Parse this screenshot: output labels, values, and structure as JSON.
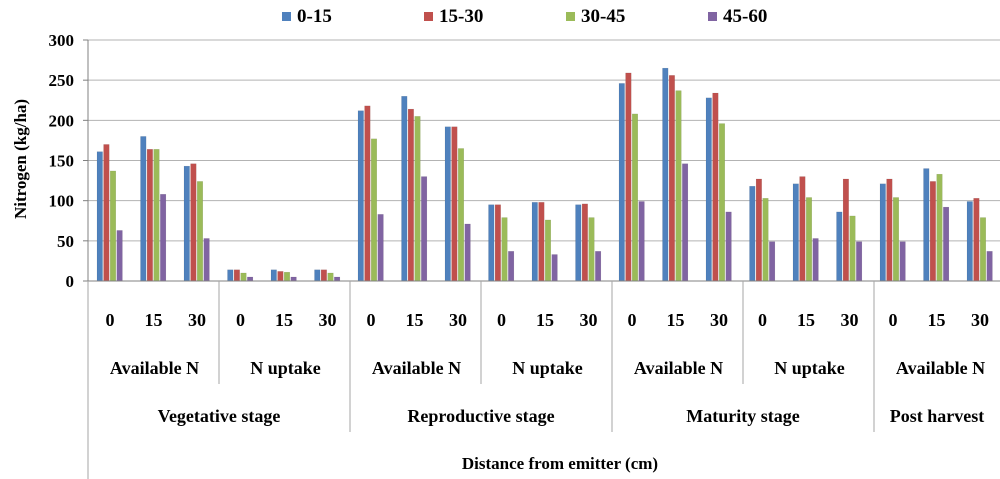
{
  "chart_data": {
    "type": "bar",
    "xlabel": "Distance from emitter  (cm)",
    "ylabel": "Nitrogen (kg/ha)",
    "ylim": [
      0,
      300
    ],
    "y_ticks": [
      "0",
      "50",
      "100",
      "150",
      "200",
      "250",
      "300"
    ],
    "grid": true,
    "legend_position": "top",
    "categories": [
      "0",
      "15",
      "30",
      "0",
      "15",
      "30",
      "0",
      "15",
      "30",
      "0",
      "15",
      "30",
      "0",
      "15",
      "30",
      "0",
      "15",
      "30",
      "0",
      "15",
      "30"
    ],
    "groups": [
      {
        "label": "Available N",
        "span": 3
      },
      {
        "label": "N uptake",
        "span": 3
      },
      {
        "label": "Available N",
        "span": 3
      },
      {
        "label": "N uptake",
        "span": 3
      },
      {
        "label": "Available N",
        "span": 3
      },
      {
        "label": "N uptake",
        "span": 3
      },
      {
        "label": "Available N",
        "span": 3
      }
    ],
    "stages": [
      {
        "label": "Vegetative stage",
        "span": 6
      },
      {
        "label": "Reproductive stage",
        "span": 6
      },
      {
        "label": "Maturity stage",
        "span": 6
      },
      {
        "label": "Post harvest",
        "span": 3
      }
    ],
    "series": [
      {
        "name": "0-15",
        "color": "#4F81BD",
        "values": [
          161,
          180,
          143,
          14,
          14,
          14,
          212,
          230,
          192,
          95,
          98,
          95,
          246,
          265,
          228,
          118,
          121,
          86,
          121,
          140,
          99
        ]
      },
      {
        "name": "15-30",
        "color": "#C0504D",
        "values": [
          170,
          164,
          146,
          14,
          12,
          14,
          218,
          214,
          192,
          95,
          98,
          96,
          259,
          256,
          234,
          127,
          130,
          127,
          127,
          124,
          103
        ]
      },
      {
        "name": "30-45",
        "color": "#9BBB59",
        "values": [
          137,
          164,
          124,
          10,
          11,
          10,
          177,
          205,
          165,
          79,
          76,
          79,
          208,
          237,
          196,
          103,
          104,
          81,
          104,
          133,
          79
        ]
      },
      {
        "name": "45-60",
        "color": "#8064A2",
        "values": [
          63,
          108,
          53,
          5,
          5,
          5,
          83,
          130,
          71,
          37,
          33,
          37,
          99,
          146,
          86,
          49,
          53,
          49,
          49,
          92,
          37
        ]
      }
    ]
  }
}
